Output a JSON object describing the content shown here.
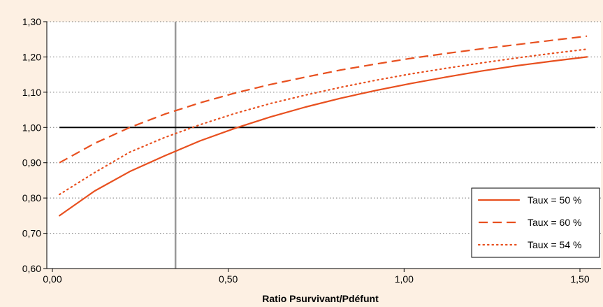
{
  "chart_data": {
    "type": "line",
    "xlabel": "Ratio Psurvivant/Pdéfunt",
    "ylabel": "",
    "xlim": [
      0,
      1.55
    ],
    "ylim": [
      0.6,
      1.3
    ],
    "x_ticks": [
      0,
      0.5,
      1.0,
      1.5
    ],
    "x_tick_labels": [
      "0,00",
      "0,50",
      "1,00",
      "1,50"
    ],
    "y_ticks": [
      0.6,
      0.7,
      0.8,
      0.9,
      1.0,
      1.1,
      1.2,
      1.3
    ],
    "y_tick_labels": [
      "0,60",
      "0,70",
      "0,80",
      "0,90",
      "1,00",
      "1,10",
      "1,20",
      "1,30"
    ],
    "grid": "horizontal dotted",
    "reference_hline": 1.0,
    "reference_vline": 0.35,
    "legend_position": "bottom-right",
    "x": [
      0.02,
      0.12,
      0.22,
      0.32,
      0.42,
      0.52,
      0.62,
      0.72,
      0.82,
      0.92,
      1.02,
      1.12,
      1.22,
      1.32,
      1.42,
      1.52
    ],
    "series": [
      {
        "name": "Taux = 50 %",
        "style": "solid",
        "values": [
          0.75,
          0.82,
          0.875,
          0.92,
          0.962,
          0.998,
          1.03,
          1.058,
          1.083,
          1.105,
          1.125,
          1.143,
          1.16,
          1.175,
          1.188,
          1.2
        ]
      },
      {
        "name": "Taux = 60 %",
        "style": "dashed",
        "values": [
          0.9,
          0.955,
          1.0,
          1.038,
          1.07,
          1.098,
          1.122,
          1.143,
          1.163,
          1.18,
          1.196,
          1.21,
          1.223,
          1.235,
          1.247,
          1.259
        ]
      },
      {
        "name": "Taux = 54 %",
        "style": "dotted",
        "values": [
          0.81,
          0.872,
          0.93,
          0.972,
          1.008,
          1.04,
          1.068,
          1.092,
          1.114,
          1.134,
          1.152,
          1.168,
          1.183,
          1.197,
          1.21,
          1.222
        ]
      }
    ]
  },
  "colors": {
    "background": "#fdf0e3",
    "plot_background": "#ffffff",
    "series": "#e8501f",
    "reference_hline": "#000000",
    "reference_vline": "#999999",
    "grid": "#777777"
  }
}
